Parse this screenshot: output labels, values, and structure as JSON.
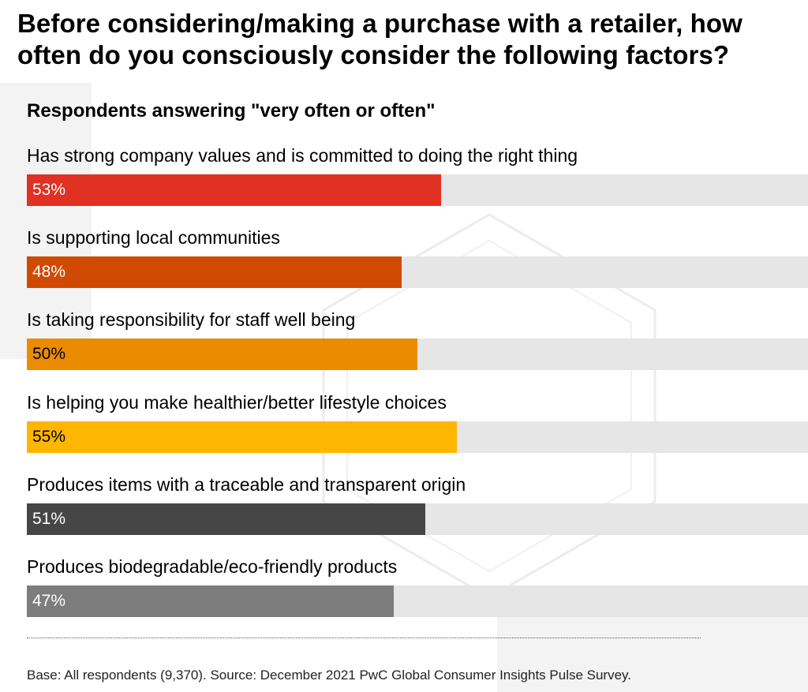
{
  "title": "Before considering/making a purchase with a retailer, how often do you consciously consider the following factors?",
  "subtitle": "Respondents answering \"very often or often\"",
  "footer": "Base: All respondents (9,370). Source: December 2021 PwC Global Consumer Insights Pulse Survey.",
  "chart_data": {
    "type": "bar",
    "orientation": "horizontal",
    "title": "Before considering/making a purchase with a retailer, how often do you consciously consider the following factors?",
    "subtitle": "Respondents answering \"very often or often\"",
    "categories": [
      "Has strong company values and is committed to doing the right thing",
      "Is supporting local communities",
      "Is taking responsibility for staff well being",
      "Is helping you make healthier/better lifestyle choices",
      "Produces items with a traceable and transparent origin",
      "Produces biodegradable/eco-friendly products"
    ],
    "values": [
      53,
      48,
      50,
      55,
      51,
      47
    ],
    "value_labels": [
      "53%",
      "48%",
      "50%",
      "55%",
      "51%",
      "47%"
    ],
    "xlim": [
      0,
      100
    ],
    "unit": "%",
    "colors": [
      "#e03123",
      "#d04a02",
      "#eb8c00",
      "#ffb600",
      "#464646",
      "#7d7d7d"
    ],
    "label_colors": [
      "#ffffff",
      "#ffffff",
      "#000000",
      "#000000",
      "#ffffff",
      "#ffffff"
    ],
    "track_color": "#e6e6e6",
    "grid": false,
    "legend": "none"
  }
}
